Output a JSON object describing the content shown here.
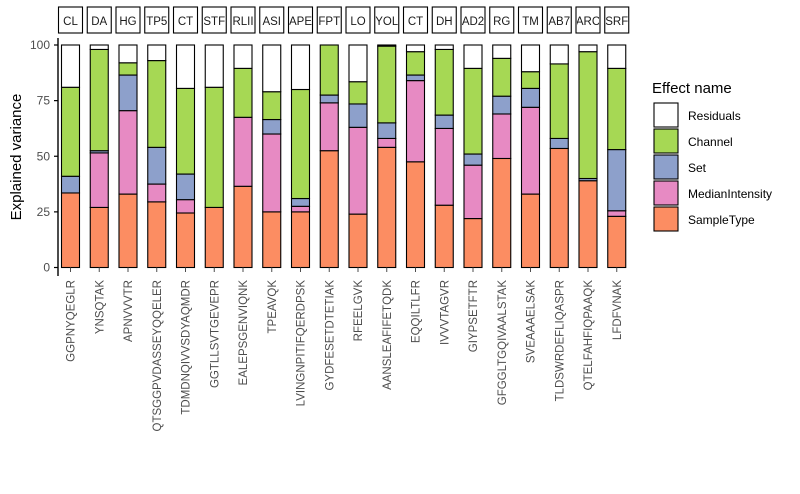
{
  "chart_data": {
    "type": "bar",
    "stacked": true,
    "ylabel": "Explained variance",
    "xlabel": "",
    "ylim": [
      0,
      100
    ],
    "yticks": [
      0,
      25,
      50,
      75,
      100
    ],
    "legend_title": "Effect name",
    "legend_position": "right",
    "strip_labels": [
      "CL",
      "DA",
      "HG",
      "TP5",
      "CT",
      "STF",
      "RLII",
      "ASI",
      "APE",
      "FPT",
      "LO",
      "YOL",
      "CT",
      "DH",
      "AD2",
      "RG",
      "TM",
      "AB7",
      "ARC",
      "SRF"
    ],
    "categories": [
      "GGPNYQEGLR",
      "YNSQTAK",
      "APNVVVTR",
      "QTSGGPVDASSEYQQELER",
      "TDMDNQIVVSDYAQMDR",
      "GGTLLSVTGEVEPR",
      "EALEPSGENVIQNK",
      "TPEAVQK",
      "LVINGNPITIFQERDPSK",
      "GYDFESETDTETIAK",
      "RFEELGVK",
      "AANSLEAFIFETQDK",
      "EQQILTLFR",
      "IVVVTAGVR",
      "GIYPSETFTR",
      "GFGGLTGQIVAALSTAK",
      "SVEAAAELSAK",
      "TLDSWRDEFLIQASPR",
      "QTELFAHFIQPAAQK",
      "LFDFVNAK"
    ],
    "series": [
      {
        "name": "SampleType",
        "color": "#FC8D62",
        "values": [
          33.5,
          27,
          33,
          29.5,
          24.5,
          27,
          36.5,
          25,
          25,
          52.5,
          24,
          54,
          47.5,
          28,
          22,
          49,
          33,
          53.5,
          39,
          23
        ]
      },
      {
        "name": "MedianIntensity",
        "color": "#E78AC3",
        "values": [
          0,
          24.5,
          37.5,
          8,
          6,
          0,
          31,
          35,
          2.5,
          21.5,
          39,
          4,
          36.5,
          34.5,
          24,
          20,
          39,
          0,
          0,
          2.5
        ]
      },
      {
        "name": "Set",
        "color": "#8DA0CB",
        "values": [
          7.5,
          1,
          16,
          16.5,
          11.5,
          0,
          0,
          6.5,
          3.5,
          3.5,
          10.5,
          7,
          2.5,
          6,
          5,
          8,
          8.5,
          4.5,
          1,
          27.5
        ]
      },
      {
        "name": "Channel",
        "color": "#A6D854",
        "values": [
          40,
          45.5,
          5.5,
          39,
          38.5,
          54,
          22,
          12.5,
          49,
          22.5,
          10,
          34.5,
          10.5,
          29.5,
          38.5,
          17,
          7.5,
          33.5,
          57,
          36.5
        ]
      },
      {
        "name": "Residuals",
        "color": "#FFFFFF",
        "values": [
          19,
          2,
          8,
          7,
          19.5,
          19,
          10.5,
          21,
          20,
          0,
          16.5,
          0.5,
          3,
          2,
          10.5,
          6,
          12,
          8.5,
          3,
          10.5
        ]
      }
    ],
    "legend_order": [
      "Residuals",
      "Channel",
      "Set",
      "MedianIntensity",
      "SampleType"
    ]
  }
}
